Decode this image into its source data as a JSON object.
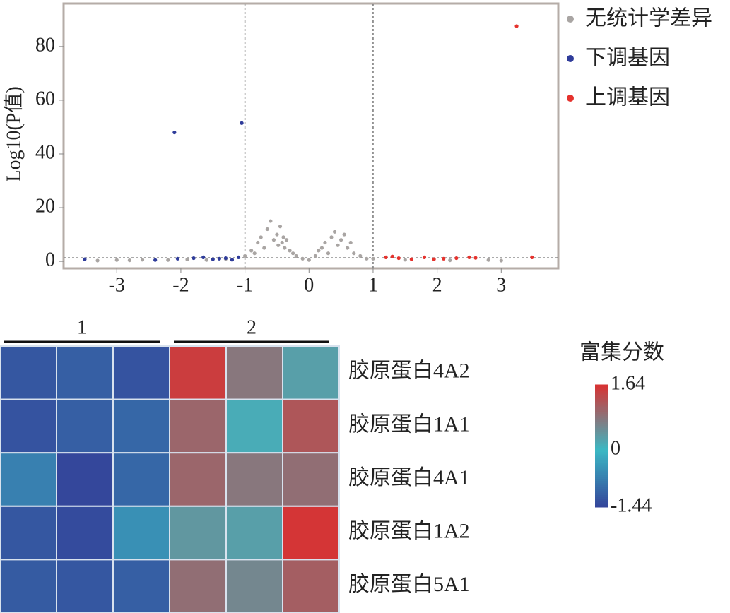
{
  "chart_data": [
    {
      "type": "scatter",
      "ylabel": "Log10(P值)",
      "xlim": [
        -3.83,
        3.89
      ],
      "ylim": [
        -2.6,
        96
      ],
      "xticks": [
        -3,
        -2,
        -1,
        0,
        1,
        2,
        3
      ],
      "yticks": [
        0,
        20,
        40,
        60,
        80
      ],
      "vlines": [
        -1,
        1
      ],
      "hline": 1.3,
      "series": [
        {
          "name": "无统计学差异",
          "color": "#a9a5a3",
          "x": [
            -3.3,
            -3.0,
            -2.8,
            -2.6,
            -2.2,
            -1.9,
            -1.6,
            -1.3,
            -1.0,
            -0.9,
            -0.85,
            -0.8,
            -0.75,
            -0.7,
            -0.65,
            -0.6,
            -0.55,
            -0.5,
            -0.48,
            -0.45,
            -0.42,
            -0.4,
            -0.38,
            -0.35,
            -0.3,
            -0.25,
            -0.2,
            -0.1,
            0,
            0.1,
            0.15,
            0.2,
            0.25,
            0.3,
            0.35,
            0.4,
            0.45,
            0.5,
            0.55,
            0.6,
            0.65,
            0.7,
            0.8,
            0.9,
            1.0,
            1.5,
            2.2,
            2.8,
            3.0
          ],
          "values": [
            0.3,
            0.5,
            0.4,
            0.6,
            0.5,
            0.7,
            0.5,
            0.9,
            2,
            4,
            3,
            7,
            9,
            5,
            12,
            15,
            8,
            10,
            6,
            13,
            7,
            9,
            5,
            8,
            4,
            3,
            2,
            1,
            0.5,
            2,
            4,
            5,
            7,
            3,
            9,
            11,
            6,
            8,
            10,
            5,
            7,
            3,
            2,
            1,
            1,
            0.6,
            0.4,
            0.5,
            0.3
          ]
        },
        {
          "name": "下调基因",
          "color": "#2f3c9a",
          "x": [
            -2.1,
            -1.05,
            -3.5,
            -2.4,
            -2.05,
            -1.8,
            -1.65,
            -1.5,
            -1.4,
            -1.3,
            -1.2,
            -1.1
          ],
          "values": [
            48,
            51.5,
            0.8,
            0.5,
            1,
            1.2,
            1.5,
            0.8,
            1,
            1.2,
            0.6,
            1.5
          ]
        },
        {
          "name": "上调基因",
          "color": "#e5322d",
          "x": [
            1.2,
            1.3,
            1.4,
            1.6,
            1.8,
            1.95,
            2.1,
            2.3,
            2.5,
            2.6,
            3.24,
            3.48
          ],
          "values": [
            1.5,
            1.8,
            1.2,
            0.8,
            1.5,
            0.8,
            1,
            1.2,
            1.5,
            1.3,
            87.6,
            1.5
          ]
        }
      ]
    },
    {
      "type": "heatmap",
      "groups": [
        "1",
        "2"
      ],
      "rows": [
        "胶原蛋白4A2",
        "胶原蛋白1A1",
        "胶原蛋白4A1",
        "胶原蛋白1A2",
        "胶原蛋白5A1"
      ],
      "values": [
        [
          -1.2,
          -1.1,
          -1.25,
          1.5,
          0.8,
          0.3
        ],
        [
          -1.25,
          -1.1,
          -1.0,
          1.0,
          0.15,
          1.2
        ],
        [
          -0.7,
          -1.4,
          -1.0,
          1.0,
          0.8,
          0.9
        ],
        [
          -1.2,
          -1.35,
          -0.5,
          0.4,
          0.3,
          1.6
        ],
        [
          -1.15,
          -1.2,
          -1.1,
          0.9,
          0.6,
          1.1
        ]
      ],
      "colorbar_title": "富集分数",
      "clim": [
        -1.44,
        1.64
      ],
      "colorbar_ticks": [
        -1.44,
        0,
        1.64
      ],
      "colors": [
        "#34449a",
        "#3bb8c4",
        "#d83232"
      ]
    }
  ]
}
